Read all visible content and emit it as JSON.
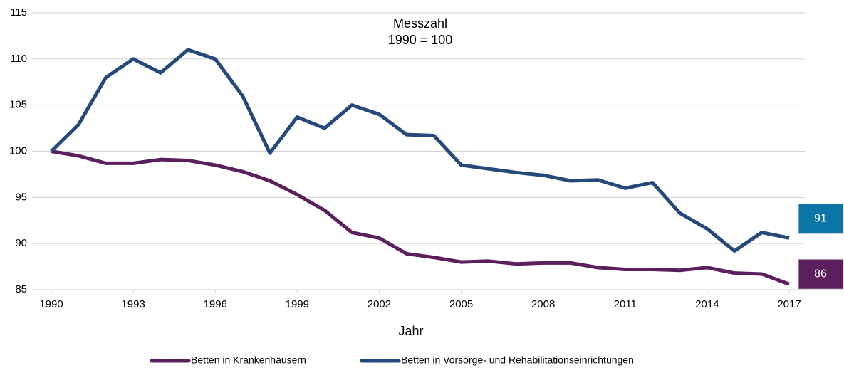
{
  "chart_data": {
    "type": "line",
    "annotation": [
      "Messzahl",
      "1990 = 100"
    ],
    "x_label": "Jahr",
    "x": [
      1990,
      1991,
      1992,
      1993,
      1994,
      1995,
      1996,
      1997,
      1998,
      1999,
      2000,
      2001,
      2002,
      2003,
      2004,
      2005,
      2006,
      2007,
      2008,
      2009,
      2010,
      2011,
      2012,
      2013,
      2014,
      2015,
      2016,
      2017
    ],
    "series": [
      {
        "name": "Betten in Krankenhäusern",
        "color": "#5b1f5e",
        "label_color": "#5b1f5e",
        "end_label": "86",
        "values": [
          100,
          99.5,
          98.7,
          98.7,
          99.1,
          99.0,
          98.5,
          97.8,
          96.8,
          95.3,
          93.6,
          91.2,
          90.6,
          88.9,
          88.5,
          88.0,
          88.1,
          87.8,
          87.9,
          87.9,
          87.4,
          87.2,
          87.2,
          87.1,
          87.4,
          86.8,
          86.7,
          85.6
        ]
      },
      {
        "name": "Betten in Vorsorge- und Rehabilitationseinrichtungen",
        "color": "#24497a",
        "label_color": "#0b76a5",
        "end_label": "91",
        "values": [
          100,
          102.9,
          108,
          110,
          108.5,
          111,
          110,
          106,
          99.8,
          103.7,
          102.5,
          105,
          104,
          101.8,
          101.7,
          98.5,
          98.1,
          97.7,
          97.4,
          96.8,
          96.9,
          96.0,
          96.6,
          93.3,
          91.6,
          89.2,
          91.2,
          90.6
        ]
      }
    ],
    "xlim": [
      1990,
      2017
    ],
    "xticks": [
      1990,
      1993,
      1996,
      1999,
      2002,
      2005,
      2008,
      2011,
      2014,
      2017
    ],
    "ylim": [
      85,
      115
    ],
    "yticks": [
      85,
      90,
      95,
      100,
      105,
      110,
      115
    ],
    "grid": true,
    "legend": "bottom"
  }
}
